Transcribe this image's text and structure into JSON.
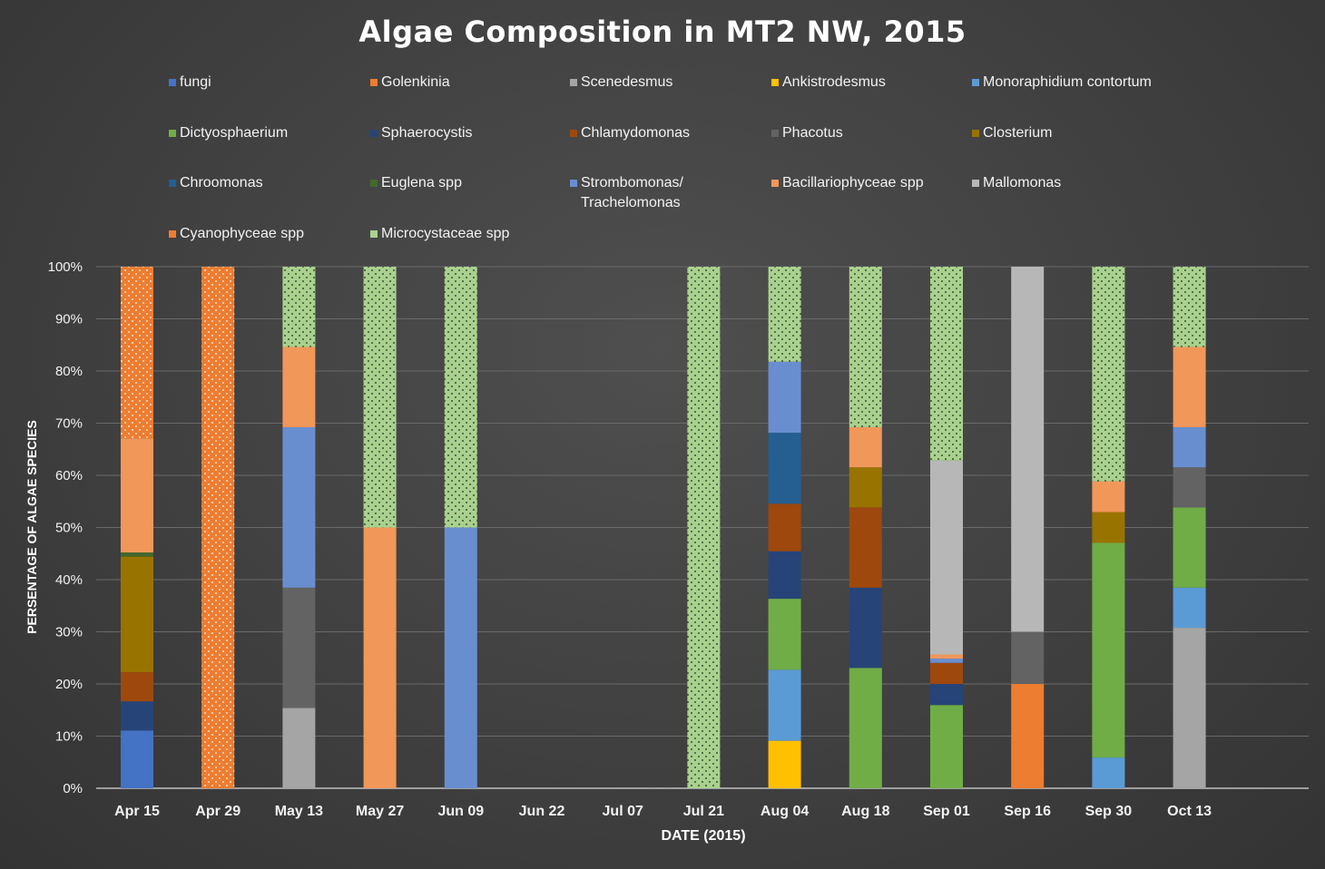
{
  "chart_data": {
    "type": "bar",
    "stacked": "percent",
    "title": "Algae Composition in MT2 NW, 2015",
    "xlabel": "DATE (2015)",
    "ylabel": "PERSENTAGE OF ALGAE SPECIES",
    "ylim": [
      0,
      100
    ],
    "yticks": [
      "0%",
      "10%",
      "20%",
      "30%",
      "40%",
      "50%",
      "60%",
      "70%",
      "80%",
      "90%",
      "100%"
    ],
    "grid": true,
    "legend_position": "top",
    "categories": [
      "Apr 15",
      "Apr 29",
      "May 13",
      "May 27",
      "Jun 09",
      "Jun 22",
      "Jul 07",
      "Jul 21",
      "Aug 04",
      "Aug 18",
      "Sep 01",
      "Sep 16",
      "Sep 30",
      "Oct 13"
    ],
    "series": [
      {
        "name": "fungi",
        "color": "#4472c4",
        "pattern": "none",
        "values": [
          11.1,
          0,
          0,
          0,
          0,
          0,
          0,
          0,
          0,
          0,
          0,
          0,
          0,
          0
        ]
      },
      {
        "name": "Golenkinia",
        "color": "#ed7d31",
        "pattern": "none",
        "values": [
          0,
          0,
          0,
          0,
          0,
          0,
          0,
          0,
          0,
          0,
          0,
          20,
          0,
          0
        ]
      },
      {
        "name": "Scenedesmus",
        "color": "#a5a5a5",
        "pattern": "none",
        "values": [
          0,
          0,
          15.4,
          0,
          0,
          0,
          0,
          0,
          0,
          0,
          0,
          0,
          0,
          30.8
        ]
      },
      {
        "name": "Ankistrodesmus",
        "color": "#ffc000",
        "pattern": "none",
        "values": [
          0,
          0,
          0,
          0,
          0,
          0,
          0,
          0,
          9.1,
          0,
          0,
          0,
          0,
          0
        ]
      },
      {
        "name": "Monoraphidium contortum",
        "color": "#5b9bd5",
        "pattern": "none",
        "values": [
          0,
          0,
          0,
          0,
          0,
          0,
          0,
          0,
          13.6,
          0,
          0,
          0,
          5.9,
          7.7
        ]
      },
      {
        "name": "Dictyosphaerium",
        "color": "#70ad47",
        "pattern": "none",
        "values": [
          0,
          0,
          0,
          0,
          0,
          0,
          0,
          0,
          13.6,
          23.1,
          15.8,
          0,
          41.2,
          15.4
        ]
      },
      {
        "name": "Sphaerocystis",
        "color": "#264478",
        "pattern": "none",
        "values": [
          5.6,
          0,
          0,
          0,
          0,
          0,
          0,
          0,
          9.1,
          15.4,
          4.0,
          0,
          0,
          0
        ]
      },
      {
        "name": "Chlamydomonas",
        "color": "#9e480e",
        "pattern": "none",
        "values": [
          5.6,
          0,
          0,
          0,
          0,
          0,
          0,
          0,
          9.1,
          15.4,
          4.0,
          0,
          0,
          0
        ]
      },
      {
        "name": "Phacotus",
        "color": "#636363",
        "pattern": "none",
        "values": [
          0,
          0,
          23.1,
          0,
          0,
          0,
          0,
          0,
          0,
          0,
          0,
          10,
          0,
          7.7
        ]
      },
      {
        "name": "Closterium",
        "color": "#997300",
        "pattern": "none",
        "values": [
          22.2,
          0,
          0,
          0,
          0,
          0,
          0,
          0,
          0,
          7.7,
          0,
          0,
          5.9,
          0
        ]
      },
      {
        "name": "Chroomonas",
        "color": "#255e91",
        "pattern": "none",
        "values": [
          0,
          0,
          0,
          0,
          0,
          0,
          0,
          0,
          13.6,
          0,
          0,
          0,
          0,
          0
        ]
      },
      {
        "name": "Euglena spp",
        "color": "#43682b",
        "pattern": "none",
        "values": [
          0.8,
          0,
          0,
          0,
          0,
          0,
          0,
          0,
          0,
          0,
          0,
          0,
          0,
          0
        ]
      },
      {
        "name": "Strombomonas/ Trachelomonas",
        "label_lines": [
          "Strombomonas/",
          "Trachelomonas"
        ],
        "color": "#698ed0",
        "pattern": "none",
        "values": [
          0,
          0,
          30.8,
          0,
          50,
          0,
          0,
          0,
          13.6,
          0,
          0.8,
          0,
          0,
          7.7
        ]
      },
      {
        "name": "Bacillariophyceae spp",
        "color": "#f1975a",
        "pattern": "none",
        "values": [
          21.9,
          0,
          15.4,
          50,
          0,
          0,
          0,
          0,
          0,
          7.7,
          0.8,
          0,
          5.9,
          15.4
        ]
      },
      {
        "name": "Mallomonas",
        "color": "#b7b7b7",
        "pattern": "none",
        "values": [
          0,
          0,
          0,
          0,
          0,
          0,
          0,
          0,
          0,
          0,
          36.8,
          70,
          0,
          0
        ]
      },
      {
        "name": "Cyanophyceae spp",
        "color": "#ed7d31",
        "pattern": "dots-light",
        "values": [
          33,
          100,
          0,
          0,
          0,
          0,
          0,
          0,
          0,
          0,
          0,
          0,
          0,
          0
        ]
      },
      {
        "name": "Microcystaceae spp",
        "color": "#a9d18e",
        "pattern": "dots-dark",
        "values": [
          0,
          0,
          15.4,
          50,
          50,
          0,
          0,
          100,
          18.2,
          30.8,
          36.8,
          0,
          41.2,
          15.4
        ]
      }
    ]
  }
}
